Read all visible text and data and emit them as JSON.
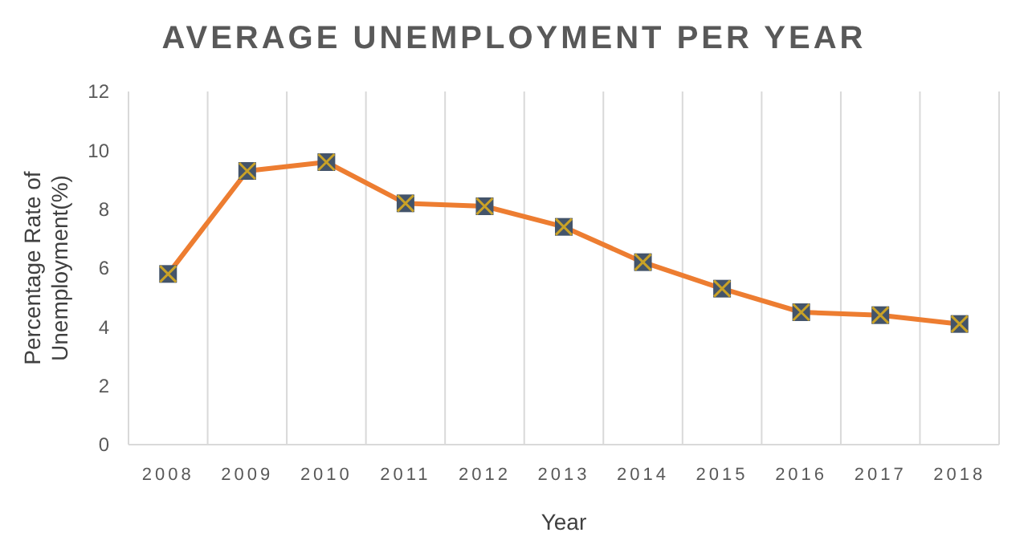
{
  "chart_data": {
    "type": "line",
    "title": "AVERAGE UNEMPLOYMENT PER YEAR",
    "xlabel": "Year",
    "ylabel": "Percentage Rate of Unemployment(%)",
    "categories": [
      "2008",
      "2009",
      "2010",
      "2011",
      "2012",
      "2013",
      "2014",
      "2015",
      "2016",
      "2017",
      "2018"
    ],
    "series": [
      {
        "color": "#ed7d31",
        "values": [
          5.8,
          9.3,
          9.6,
          8.2,
          8.1,
          7.4,
          6.2,
          5.3,
          4.5,
          4.4,
          4.1
        ]
      }
    ],
    "ylim": [
      0,
      12
    ],
    "yticks": [
      0,
      2,
      4,
      6,
      8,
      10,
      12
    ],
    "grid": "x",
    "marker": "square",
    "line_style": "solid"
  }
}
